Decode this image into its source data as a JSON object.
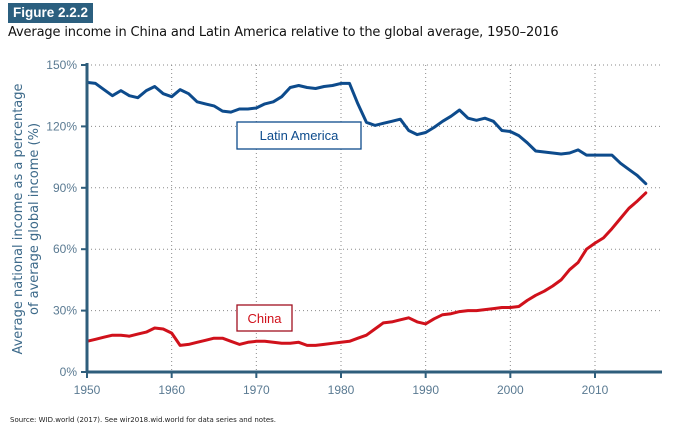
{
  "figure": {
    "number": "Figure 2.2.2",
    "title": "Average income in China and Latin America relative to the global average, 1950–2016",
    "source": "Source: WID.world (2017). See wir2018.wid.world for data series and notes."
  },
  "colors": {
    "badge": "#2b5f7f",
    "latin_america": "#0d4b8c",
    "china": "#d0111b",
    "axis": "#2f5e7c"
  },
  "chart_data": {
    "type": "line",
    "title": "Average income in China and Latin America relative to the global average, 1950–2016",
    "xlabel": "",
    "ylabel": "Average national income as a percentage of average global income (%)",
    "ylabel_lines": [
      "Average national income as a percentage",
      "of average global income (%)"
    ],
    "xlim": [
      1950,
      2017
    ],
    "ylim": [
      0,
      150
    ],
    "xticks": [
      1950,
      1960,
      1970,
      1980,
      1990,
      2000,
      2010
    ],
    "xtick_labels": [
      "1950",
      "1960",
      "1970",
      "1980",
      "1990",
      "2000",
      "2010"
    ],
    "yticks": [
      0,
      30,
      60,
      90,
      120,
      150
    ],
    "ytick_labels": [
      "0%",
      "30%",
      "60%",
      "90%",
      "120%",
      "150%"
    ],
    "grid": true,
    "x": [
      1950,
      1951,
      1952,
      1953,
      1954,
      1955,
      1956,
      1957,
      1958,
      1959,
      1960,
      1961,
      1962,
      1963,
      1964,
      1965,
      1966,
      1967,
      1968,
      1969,
      1970,
      1971,
      1972,
      1973,
      1974,
      1975,
      1976,
      1977,
      1978,
      1979,
      1980,
      1981,
      1982,
      1983,
      1984,
      1985,
      1986,
      1987,
      1988,
      1989,
      1990,
      1991,
      1992,
      1993,
      1994,
      1995,
      1996,
      1997,
      1998,
      1999,
      2000,
      2001,
      2002,
      2003,
      2004,
      2005,
      2006,
      2007,
      2008,
      2009,
      2010,
      2011,
      2012,
      2013,
      2014,
      2015,
      2016
    ],
    "series": [
      {
        "name": "Latin America",
        "color": "#0d4b8c",
        "values": [
          141.5,
          141,
          138,
          135,
          137.5,
          135,
          134,
          137.5,
          139.5,
          136,
          134.5,
          138,
          136,
          132,
          131,
          130,
          127.5,
          127,
          128.5,
          128.5,
          129,
          131,
          132,
          134.5,
          139,
          140,
          139,
          138.5,
          139.5,
          140,
          141,
          141,
          131,
          122,
          120.5,
          121.5,
          122.5,
          123.5,
          118,
          116,
          117,
          119.5,
          122.5,
          125,
          128,
          124,
          123,
          124,
          122.5,
          118,
          117.5,
          115.5,
          112,
          108,
          107.5,
          107,
          106.5,
          107,
          108.5,
          106,
          106,
          106,
          106,
          102,
          99,
          96,
          92
        ]
      },
      {
        "name": "China",
        "color": "#d0111b",
        "values": [
          15,
          16,
          17,
          18,
          18,
          17.5,
          18.5,
          19.5,
          21.5,
          21,
          19,
          13,
          13.5,
          14.5,
          15.5,
          16.5,
          16.5,
          15,
          13.5,
          14.5,
          15,
          15,
          14.5,
          14,
          14,
          14.5,
          13,
          13,
          13.5,
          14,
          14.5,
          15,
          16.5,
          18,
          21,
          24,
          24.5,
          25.5,
          26.5,
          24.5,
          23.5,
          26,
          28,
          28.5,
          29.5,
          30,
          30,
          30.5,
          31,
          31.5,
          31.5,
          32,
          35,
          37.5,
          39.5,
          42,
          45,
          50,
          53.5,
          60,
          63,
          65.5,
          70,
          75,
          80,
          83.5,
          87.5
        ]
      }
    ],
    "annotations": [
      {
        "text": "Latin America",
        "series": "Latin America"
      },
      {
        "text": "China",
        "series": "China"
      }
    ],
    "legend": "inline-labels"
  }
}
